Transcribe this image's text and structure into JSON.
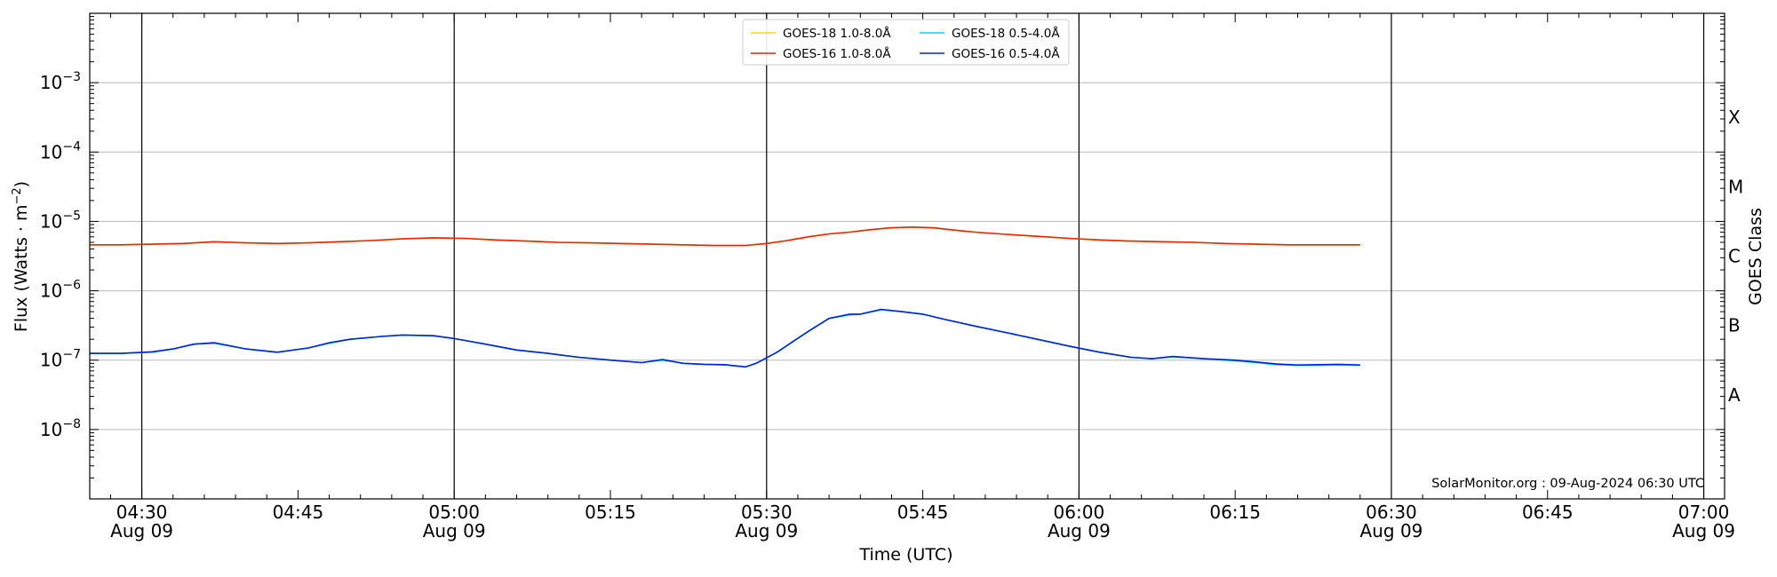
{
  "chart_data": {
    "type": "line",
    "title": "",
    "xlabel": "Time (UTC)",
    "ylabel": "Flux (Watts · m",
    "ylabel_sup": "−2",
    "ylabel_close": ")",
    "right_label": "GOES Class",
    "yscale": "log",
    "ylim": [
      1e-09,
      0.01
    ],
    "xlim": [
      "04:25",
      "07:02"
    ],
    "grid_y": true,
    "watermark": "SolarMonitor.org : 09-Aug-2024 06:30 UTC",
    "legend_position": "top-center",
    "y_ticks": [
      {
        "base": "10",
        "exp": "−8",
        "value": 1e-08
      },
      {
        "base": "10",
        "exp": "−7",
        "value": 1e-07
      },
      {
        "base": "10",
        "exp": "−6",
        "value": 1e-06
      },
      {
        "base": "10",
        "exp": "−5",
        "value": 1e-05
      },
      {
        "base": "10",
        "exp": "−4",
        "value": 0.0001
      },
      {
        "base": "10",
        "exp": "−3",
        "value": 0.001
      }
    ],
    "x_ticks": [
      {
        "t": "04:30",
        "label": "04:30",
        "sub": "Aug 09"
      },
      {
        "t": "04:45",
        "label": "04:45",
        "sub": ""
      },
      {
        "t": "05:00",
        "label": "05:00",
        "sub": "Aug 09"
      },
      {
        "t": "05:15",
        "label": "05:15",
        "sub": ""
      },
      {
        "t": "05:30",
        "label": "05:30",
        "sub": "Aug 09"
      },
      {
        "t": "05:45",
        "label": "05:45",
        "sub": ""
      },
      {
        "t": "06:00",
        "label": "06:00",
        "sub": "Aug 09"
      },
      {
        "t": "06:15",
        "label": "06:15",
        "sub": ""
      },
      {
        "t": "06:30",
        "label": "06:30",
        "sub": "Aug 09"
      },
      {
        "t": "06:45",
        "label": "06:45",
        "sub": ""
      },
      {
        "t": "07:00",
        "label": "07:00",
        "sub": "Aug 09"
      }
    ],
    "vlines": [
      "04:30",
      "05:00",
      "05:30",
      "06:00",
      "06:30",
      "07:00"
    ],
    "classes": [
      {
        "label": "A",
        "value": 3.16e-08
      },
      {
        "label": "B",
        "value": 3.16e-07
      },
      {
        "label": "C",
        "value": 3.16e-06
      },
      {
        "label": "M",
        "value": 3.16e-05
      },
      {
        "label": "X",
        "value": 0.000316
      }
    ],
    "series": [
      {
        "name": "GOES-18 1.0-8.0Å",
        "color": "#ffd700",
        "x": [
          "04:25",
          "04:28",
          "04:31",
          "04:34",
          "04:37",
          "04:40",
          "04:43",
          "04:46",
          "04:49",
          "04:52",
          "04:55",
          "04:58",
          "05:01",
          "05:04",
          "05:07",
          "05:10",
          "05:13",
          "05:16",
          "05:19",
          "05:22",
          "05:25",
          "05:28",
          "05:30",
          "05:32",
          "05:34",
          "05:36",
          "05:38",
          "05:40",
          "05:42",
          "05:44",
          "05:46",
          "05:48",
          "05:50",
          "05:53",
          "05:56",
          "05:59",
          "06:02",
          "06:05",
          "06:08",
          "06:11",
          "06:14",
          "06:17",
          "06:20",
          "06:23",
          "06:27"
        ],
        "y": [
          4.6e-06,
          4.6e-06,
          4.7e-06,
          4.8e-06,
          5.1e-06,
          4.9e-06,
          4.8e-06,
          4.9e-06,
          5.1e-06,
          5.3e-06,
          5.6e-06,
          5.8e-06,
          5.7e-06,
          5.4e-06,
          5.2e-06,
          5e-06,
          4.9e-06,
          4.8e-06,
          4.7e-06,
          4.6e-06,
          4.5e-06,
          4.5e-06,
          4.8e-06,
          5.3e-06,
          6e-06,
          6.6e-06,
          7e-06,
          7.6e-06,
          8.1e-06,
          8.3e-06,
          8.1e-06,
          7.5e-06,
          7e-06,
          6.5e-06,
          6.1e-06,
          5.7e-06,
          5.4e-06,
          5.2e-06,
          5.1e-06,
          5e-06,
          4.8e-06,
          4.7e-06,
          4.6e-06,
          4.6e-06,
          4.6e-06
        ]
      },
      {
        "name": "GOES-16 1.0-8.0Å",
        "color": "#ee2200",
        "x": [
          "04:25",
          "04:28",
          "04:31",
          "04:34",
          "04:37",
          "04:40",
          "04:43",
          "04:46",
          "04:49",
          "04:52",
          "04:55",
          "04:58",
          "05:01",
          "05:04",
          "05:07",
          "05:10",
          "05:13",
          "05:16",
          "05:19",
          "05:22",
          "05:25",
          "05:28",
          "05:30",
          "05:32",
          "05:34",
          "05:36",
          "05:38",
          "05:40",
          "05:42",
          "05:44",
          "05:46",
          "05:48",
          "05:50",
          "05:53",
          "05:56",
          "05:59",
          "06:02",
          "06:05",
          "06:08",
          "06:11",
          "06:14",
          "06:17",
          "06:20",
          "06:23",
          "06:27"
        ],
        "y": [
          4.6e-06,
          4.6e-06,
          4.7e-06,
          4.8e-06,
          5.1e-06,
          4.9e-06,
          4.8e-06,
          4.9e-06,
          5.1e-06,
          5.3e-06,
          5.6e-06,
          5.8e-06,
          5.7e-06,
          5.4e-06,
          5.2e-06,
          5e-06,
          4.9e-06,
          4.8e-06,
          4.7e-06,
          4.6e-06,
          4.5e-06,
          4.5e-06,
          4.8e-06,
          5.3e-06,
          6e-06,
          6.6e-06,
          7e-06,
          7.6e-06,
          8.1e-06,
          8.3e-06,
          8.1e-06,
          7.5e-06,
          7e-06,
          6.5e-06,
          6.1e-06,
          5.7e-06,
          5.4e-06,
          5.2e-06,
          5.1e-06,
          5e-06,
          4.8e-06,
          4.7e-06,
          4.6e-06,
          4.6e-06,
          4.6e-06
        ]
      },
      {
        "name": "GOES-18 0.5-4.0Å",
        "color": "#00d8ff",
        "x": [
          "04:25",
          "04:28",
          "04:31",
          "04:33",
          "04:35",
          "04:37",
          "04:40",
          "04:43",
          "04:46",
          "04:48",
          "04:50",
          "04:53",
          "04:55",
          "04:58",
          "05:00",
          "05:03",
          "05:06",
          "05:09",
          "05:12",
          "05:15",
          "05:18",
          "05:20",
          "05:22",
          "05:24",
          "05:26",
          "05:28",
          "05:29",
          "05:31",
          "05:34",
          "05:36",
          "05:38",
          "05:39",
          "05:41",
          "05:43",
          "05:45",
          "05:47",
          "05:50",
          "05:53",
          "05:56",
          "05:59",
          "06:02",
          "06:05",
          "06:07",
          "06:09",
          "06:12",
          "06:15",
          "06:17",
          "06:19",
          "06:21",
          "06:23",
          "06:25",
          "06:27"
        ],
        "y": [
          1.25e-07,
          1.25e-07,
          1.3e-07,
          1.45e-07,
          1.7e-07,
          1.75e-07,
          1.45e-07,
          1.3e-07,
          1.5e-07,
          1.75e-07,
          2e-07,
          2.2e-07,
          2.3e-07,
          2.25e-07,
          2.05e-07,
          1.7e-07,
          1.4e-07,
          1.25e-07,
          1.1e-07,
          1e-07,
          9.2e-08,
          1e-07,
          9e-08,
          8.7e-08,
          8.5e-08,
          8e-08,
          9e-08,
          1.3e-07,
          2.6e-07,
          4e-07,
          4.5e-07,
          4.6e-07,
          5.3e-07,
          5e-07,
          4.6e-07,
          3.9e-07,
          3.1e-07,
          2.5e-07,
          2e-07,
          1.6e-07,
          1.3e-07,
          1.1e-07,
          1.05e-07,
          1.12e-07,
          1.05e-07,
          9.8e-08,
          9.2e-08,
          8.6e-08,
          8.4e-08,
          8.4e-08,
          8.5e-08,
          8.4e-08
        ]
      },
      {
        "name": "GOES-16 0.5-4.0Å",
        "color": "#0022dd",
        "x": [
          "04:25",
          "04:28",
          "04:31",
          "04:33",
          "04:35",
          "04:37",
          "04:40",
          "04:43",
          "04:46",
          "04:48",
          "04:50",
          "04:53",
          "04:55",
          "04:58",
          "05:00",
          "05:03",
          "05:06",
          "05:09",
          "05:12",
          "05:15",
          "05:18",
          "05:20",
          "05:22",
          "05:24",
          "05:26",
          "05:28",
          "05:29",
          "05:31",
          "05:34",
          "05:36",
          "05:38",
          "05:39",
          "05:41",
          "05:43",
          "05:45",
          "05:47",
          "05:50",
          "05:53",
          "05:56",
          "05:59",
          "06:02",
          "06:05",
          "06:07",
          "06:09",
          "06:12",
          "06:15",
          "06:17",
          "06:19",
          "06:21",
          "06:23",
          "06:25",
          "06:27"
        ],
        "y": [
          1.25e-07,
          1.25e-07,
          1.32e-07,
          1.45e-07,
          1.7e-07,
          1.78e-07,
          1.45e-07,
          1.3e-07,
          1.5e-07,
          1.78e-07,
          2e-07,
          2.2e-07,
          2.3e-07,
          2.25e-07,
          2.05e-07,
          1.7e-07,
          1.4e-07,
          1.25e-07,
          1.1e-07,
          1e-07,
          9.2e-08,
          1.02e-07,
          9e-08,
          8.7e-08,
          8.6e-08,
          8e-08,
          9e-08,
          1.3e-07,
          2.6e-07,
          4e-07,
          4.6e-07,
          4.6e-07,
          5.4e-07,
          5e-07,
          4.6e-07,
          3.9e-07,
          3.1e-07,
          2.5e-07,
          2e-07,
          1.6e-07,
          1.3e-07,
          1.1e-07,
          1.05e-07,
          1.13e-07,
          1.05e-07,
          1e-07,
          9.4e-08,
          8.8e-08,
          8.5e-08,
          8.6e-08,
          8.7e-08,
          8.5e-08
        ]
      }
    ]
  }
}
